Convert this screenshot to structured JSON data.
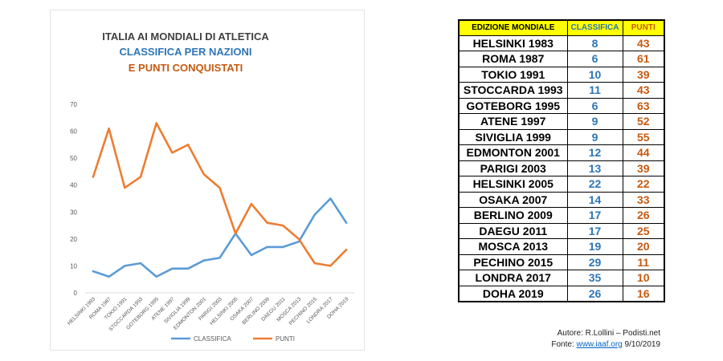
{
  "chart_data": {
    "type": "line",
    "title": [
      "ITALIA AI MONDIALI DI ATLETICA",
      "CLASSIFICA PER NAZIONI",
      "E PUNTI CONQUISTATI"
    ],
    "title_colors": [
      "#404040",
      "#2e75b6",
      "#c55a11"
    ],
    "categories": [
      "HELSINKI 1983",
      "ROMA 1987",
      "TOKIO 1991",
      "STOCCARDA 1993",
      "GOTEBORG 1995",
      "ATENE 1997",
      "SIVIGLIA 1999",
      "EDMONTON 2001",
      "PARIGI 2003",
      "HELSINKI 2005",
      "OSAKA 2007",
      "BERLINO 2009",
      "DAEGU 2011",
      "MOSCA 2013",
      "PECHINO 2015",
      "LONDRA 2017",
      "DOHA 2019"
    ],
    "series": [
      {
        "name": "CLASSIFICA",
        "color": "#5b9bd5",
        "values": [
          8,
          6,
          10,
          11,
          6,
          9,
          9,
          12,
          13,
          22,
          14,
          17,
          17,
          19,
          29,
          35,
          26
        ]
      },
      {
        "name": "PUNTI",
        "color": "#ed7d31",
        "values": [
          43,
          61,
          39,
          43,
          63,
          52,
          55,
          44,
          39,
          22,
          33,
          26,
          25,
          20,
          11,
          10,
          16
        ]
      }
    ],
    "ylim": [
      0,
      70
    ],
    "yticks": [
      0,
      10,
      20,
      30,
      40,
      50,
      60,
      70
    ],
    "xlabel": "",
    "ylabel": "",
    "legend_position": "bottom",
    "grid": false
  },
  "table": {
    "headers": [
      "EDIZIONE MONDIALE",
      "CLASSIFICA",
      "PUNTI"
    ],
    "header_colors": [
      "#000000",
      "#2e75b6",
      "#c55a11"
    ],
    "rows": [
      [
        "HELSINKI 1983",
        "8",
        "43"
      ],
      [
        "ROMA 1987",
        "6",
        "61"
      ],
      [
        "TOKIO 1991",
        "10",
        "39"
      ],
      [
        "STOCCARDA 1993",
        "11",
        "43"
      ],
      [
        "GOTEBORG 1995",
        "6",
        "63"
      ],
      [
        "ATENE 1997",
        "9",
        "52"
      ],
      [
        "SIVIGLIA 1999",
        "9",
        "55"
      ],
      [
        "EDMONTON 2001",
        "12",
        "44"
      ],
      [
        "PARIGI 2003",
        "13",
        "39"
      ],
      [
        "HELSINKI 2005",
        "22",
        "22"
      ],
      [
        "OSAKA 2007",
        "14",
        "33"
      ],
      [
        "BERLINO 2009",
        "17",
        "26"
      ],
      [
        "DAEGU 2011",
        "17",
        "25"
      ],
      [
        "MOSCA 2013",
        "19",
        "20"
      ],
      [
        "PECHINO 2015",
        "29",
        "11"
      ],
      [
        "LONDRA 2017",
        "35",
        "10"
      ],
      [
        "DOHA 2019",
        "26",
        "16"
      ]
    ]
  },
  "credits": {
    "author": "Autore:  R.Lollini – Podisti.net",
    "source_prefix": "Fonte:  ",
    "source_link": "www.iaaf.org",
    "source_date": " 9/10/2019"
  }
}
